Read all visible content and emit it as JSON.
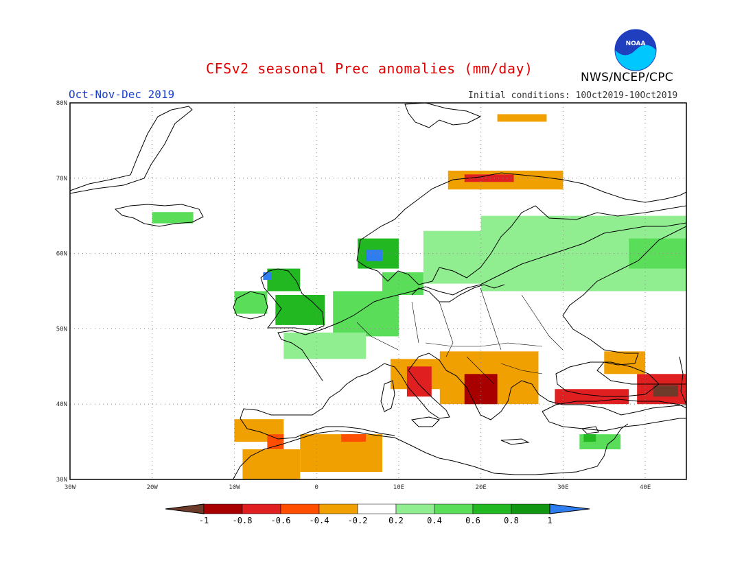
{
  "title": "CFSv2 seasonal Prec anomalies (mm/day)",
  "period": "Oct-Nov-Dec 2019",
  "initial_conditions": "Initial conditions: 10Oct2019-10Oct2019",
  "agency": "NWS/NCEP/CPC",
  "logo_text": "NOAA",
  "map": {
    "lon_range": [
      -30,
      45
    ],
    "lat_range": [
      30,
      80
    ],
    "lat_ticks": [
      {
        "value": 30,
        "label": "30N"
      },
      {
        "value": 40,
        "label": "40N"
      },
      {
        "value": 50,
        "label": "50N"
      },
      {
        "value": 60,
        "label": "60N"
      },
      {
        "value": 70,
        "label": "70N"
      },
      {
        "value": 80,
        "label": "80N"
      }
    ],
    "lon_ticks": [
      {
        "value": -30,
        "label": "30W"
      },
      {
        "value": -20,
        "label": "20W"
      },
      {
        "value": -10,
        "label": "10W"
      },
      {
        "value": 0,
        "label": "0"
      },
      {
        "value": 10,
        "label": "10E"
      },
      {
        "value": 20,
        "label": "20E"
      },
      {
        "value": 30,
        "label": "30E"
      },
      {
        "value": 40,
        "label": "40E"
      }
    ],
    "grid": true,
    "anomaly_regions": [
      {
        "name": "iceland",
        "lon": [
          -20,
          -15
        ],
        "lat": [
          64,
          65.5
        ],
        "level": 0.5
      },
      {
        "name": "norway-west",
        "lon": [
          5,
          10
        ],
        "lat": [
          58,
          62
        ],
        "level": 0.7
      },
      {
        "name": "norway-west-peak",
        "lon": [
          6,
          8
        ],
        "lat": [
          59,
          60.5
        ],
        "level": 1.1
      },
      {
        "name": "scotland",
        "lon": [
          -6,
          -2
        ],
        "lat": [
          55,
          58
        ],
        "level": 0.7
      },
      {
        "name": "scotland-peak",
        "lon": [
          -6.5,
          -5.5
        ],
        "lat": [
          56.5,
          57.5
        ],
        "level": 1.1
      },
      {
        "name": "ireland",
        "lon": [
          -10,
          -6
        ],
        "lat": [
          52,
          55
        ],
        "level": 0.5
      },
      {
        "name": "england",
        "lon": [
          -5,
          1
        ],
        "lat": [
          50.5,
          54.5
        ],
        "level": 0.6
      },
      {
        "name": "benelux-germany",
        "lon": [
          2,
          10
        ],
        "lat": [
          49,
          55
        ],
        "level": 0.5
      },
      {
        "name": "denmark",
        "lon": [
          8,
          13
        ],
        "lat": [
          54.5,
          57.5
        ],
        "level": 0.4
      },
      {
        "name": "france-north",
        "lon": [
          -4,
          6
        ],
        "lat": [
          46,
          49.5
        ],
        "level": 0.3
      },
      {
        "name": "scandinavia-east",
        "lon": [
          13,
          25
        ],
        "lat": [
          56,
          63
        ],
        "level": 0.3
      },
      {
        "name": "finland-russia",
        "lon": [
          20,
          45
        ],
        "lat": [
          55,
          65
        ],
        "level": 0.3
      },
      {
        "name": "russia-east",
        "lon": [
          38,
          45
        ],
        "lat": [
          58,
          62
        ],
        "level": 0.5
      },
      {
        "name": "norway-north",
        "lon": [
          16,
          30
        ],
        "lat": [
          68.5,
          71
        ],
        "level": -0.4
      },
      {
        "name": "norway-north-peak",
        "lon": [
          18,
          24
        ],
        "lat": [
          69.5,
          70.5
        ],
        "level": -0.7
      },
      {
        "name": "svalbard",
        "lon": [
          22,
          28
        ],
        "lat": [
          77.5,
          78.5
        ],
        "level": -0.3
      },
      {
        "name": "alps-italy",
        "lon": [
          9,
          17
        ],
        "lat": [
          42,
          46
        ],
        "level": -0.4
      },
      {
        "name": "italy-peak",
        "lon": [
          11,
          14
        ],
        "lat": [
          41,
          45
        ],
        "level": -0.7
      },
      {
        "name": "balkans",
        "lon": [
          15,
          27
        ],
        "lat": [
          40,
          47
        ],
        "level": -0.4
      },
      {
        "name": "balkans-peak",
        "lon": [
          18,
          22
        ],
        "lat": [
          40,
          44
        ],
        "level": -0.9
      },
      {
        "name": "turkey-north",
        "lon": [
          29,
          38
        ],
        "lat": [
          40,
          42
        ],
        "level": -0.7
      },
      {
        "name": "caucasus",
        "lon": [
          39,
          45
        ],
        "lat": [
          40,
          44
        ],
        "level": -0.8
      },
      {
        "name": "caucasus-peak",
        "lon": [
          41,
          44
        ],
        "lat": [
          41,
          42.5
        ],
        "level": -1.1
      },
      {
        "name": "caucasus-north",
        "lon": [
          35,
          40
        ],
        "lat": [
          44,
          47
        ],
        "level": -0.3
      },
      {
        "name": "iberia-south",
        "lon": [
          -10,
          -4
        ],
        "lat": [
          35,
          38
        ],
        "level": -0.4
      },
      {
        "name": "iberia-south-peak",
        "lon": [
          -6,
          -4
        ],
        "lat": [
          34,
          36
        ],
        "level": -0.6
      },
      {
        "name": "morocco",
        "lon": [
          -9,
          -2
        ],
        "lat": [
          30,
          34
        ],
        "level": -0.3
      },
      {
        "name": "algeria",
        "lon": [
          -2,
          8
        ],
        "lat": [
          31,
          36
        ],
        "level": -0.3
      },
      {
        "name": "algeria-peak",
        "lon": [
          3,
          6
        ],
        "lat": [
          35,
          36
        ],
        "level": -0.5
      },
      {
        "name": "cyprus-levant",
        "lon": [
          32,
          37
        ],
        "lat": [
          34,
          36
        ],
        "level": 0.4
      },
      {
        "name": "cyprus-peak",
        "lon": [
          32.5,
          34
        ],
        "lat": [
          35,
          36
        ],
        "level": 0.7
      }
    ],
    "country_borders_color": "#000000"
  },
  "legend": {
    "labels": [
      "-1",
      "-0.8",
      "-0.6",
      "-0.4",
      "-0.2",
      "0.2",
      "0.4",
      "0.6",
      "0.8",
      "1"
    ],
    "colors": [
      "#6e3a2a",
      "#a80000",
      "#e02020",
      "#ff4e00",
      "#f0a000",
      "#ffffff",
      "#90ee90",
      "#5ade5a",
      "#22b822",
      "#109610",
      "#2f7ef0"
    ]
  }
}
